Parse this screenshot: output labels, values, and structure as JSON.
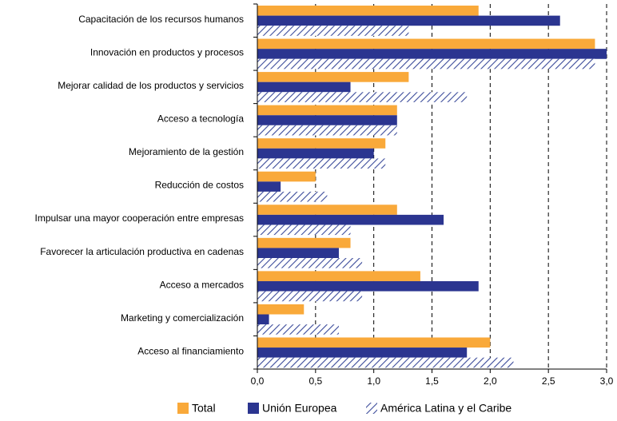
{
  "chart_data": {
    "type": "hbar",
    "categories": [
      "Capacitación de los recursos humanos",
      "Innovación en productos y procesos",
      "Mejorar calidad de los productos y servicios",
      "Acceso a tecnología",
      "Mejoramiento de la gestión",
      "Reducción de costos",
      "Impulsar una mayor cooperación entre empresas",
      "Favorecer la articulación productiva en cadenas",
      "Acceso a mercados",
      "Marketing y comercialización",
      "Acceso al financiamiento"
    ],
    "series": [
      {
        "name": "Total",
        "color": "#f9a93a",
        "values": [
          1.9,
          2.9,
          1.3,
          1.2,
          1.1,
          0.5,
          1.2,
          0.8,
          1.4,
          0.4,
          2.0
        ]
      },
      {
        "name": "Unión Europea",
        "color": "#2b3590",
        "values": [
          2.6,
          3.0,
          0.8,
          1.2,
          1.0,
          0.2,
          1.6,
          0.7,
          1.9,
          0.1,
          1.8
        ]
      },
      {
        "name": "América Latina y el Caribe",
        "color": "#3a4a9a",
        "pattern": "hatch",
        "values": [
          1.3,
          2.9,
          1.8,
          1.2,
          1.1,
          0.6,
          0.8,
          0.9,
          0.9,
          0.7,
          2.2
        ]
      }
    ],
    "xlim": [
      0,
      3
    ],
    "xticks": [
      {
        "value": 0,
        "label": "0,0"
      },
      {
        "value": 0.5,
        "label": "0,5"
      },
      {
        "value": 1,
        "label": "1,0"
      },
      {
        "value": 1.5,
        "label": "1,5"
      },
      {
        "value": 2,
        "label": "2,0"
      },
      {
        "value": 2.5,
        "label": "2,5"
      },
      {
        "value": 3,
        "label": "3,0"
      }
    ],
    "grid": true,
    "legend": "bottom"
  }
}
